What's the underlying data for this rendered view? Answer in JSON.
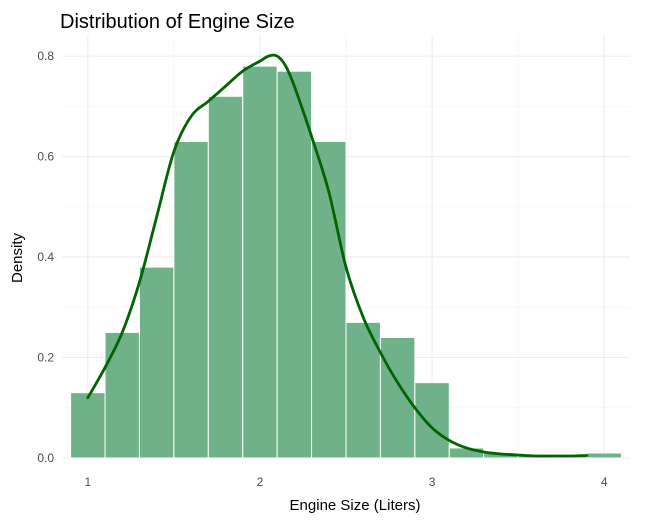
{
  "chart_data": {
    "type": "bar",
    "title": "Distribution of Engine Size",
    "xlabel": "Engine Size (Liters)",
    "ylabel": "Density",
    "xlim": [
      0.85,
      4.15
    ],
    "ylim": [
      -0.0,
      0.84
    ],
    "x_ticks": [
      1,
      2,
      3,
      4
    ],
    "y_ticks": [
      0.0,
      0.2,
      0.4,
      0.6,
      0.8
    ],
    "x_tick_labels": [
      "1",
      "2",
      "3",
      "4"
    ],
    "y_tick_labels": [
      "0.0",
      "0.2",
      "0.4",
      "0.6",
      "0.8"
    ],
    "grid": true,
    "bin_width": 0.2,
    "histogram": {
      "name": "histogram",
      "bin_centers": [
        1.0,
        1.2,
        1.4,
        1.6,
        1.8,
        2.0,
        2.2,
        2.4,
        2.6,
        2.8,
        3.0,
        3.2,
        3.4,
        3.6,
        3.8,
        4.0
      ],
      "density": [
        0.13,
        0.25,
        0.38,
        0.63,
        0.72,
        0.78,
        0.77,
        0.63,
        0.27,
        0.24,
        0.15,
        0.02,
        0.01,
        0.005,
        0.005,
        0.01
      ],
      "color": "#6aaf86"
    },
    "density_curve": {
      "name": "density",
      "x": [
        1.0,
        1.1,
        1.2,
        1.3,
        1.4,
        1.5,
        1.6,
        1.7,
        1.8,
        1.9,
        2.0,
        2.05,
        2.1,
        2.15,
        2.2,
        2.3,
        2.4,
        2.5,
        2.6,
        2.7,
        2.8,
        2.9,
        3.0,
        3.1,
        3.2,
        3.3,
        3.4,
        3.5,
        3.6,
        3.7,
        3.8,
        3.9
      ],
      "y": [
        0.12,
        0.18,
        0.25,
        0.35,
        0.48,
        0.61,
        0.68,
        0.71,
        0.74,
        0.77,
        0.79,
        0.8,
        0.8,
        0.78,
        0.74,
        0.64,
        0.53,
        0.38,
        0.28,
        0.21,
        0.15,
        0.1,
        0.06,
        0.035,
        0.02,
        0.012,
        0.008,
        0.006,
        0.004,
        0.004,
        0.004,
        0.005
      ],
      "color": "#006400"
    }
  }
}
